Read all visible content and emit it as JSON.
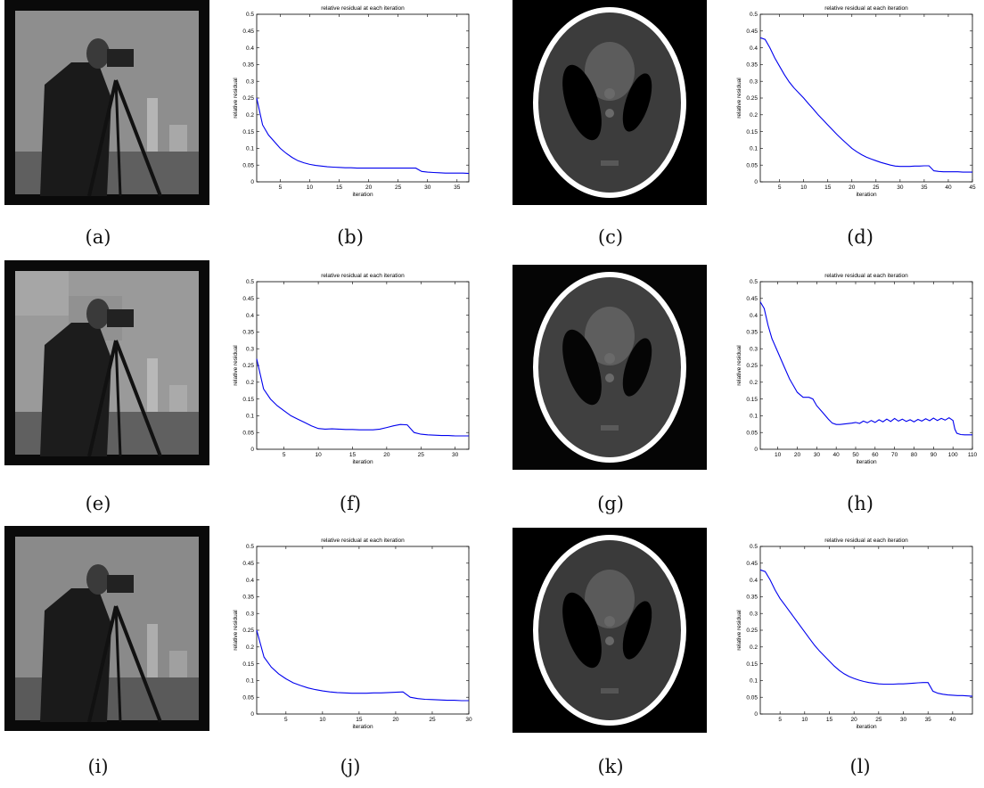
{
  "captions": [
    "(a)",
    "(b)",
    "(c)",
    "(d)",
    "(e)",
    "(f)",
    "(g)",
    "(h)",
    "(i)",
    "(j)",
    "(k)",
    "(l)"
  ],
  "colors": {
    "series": "#0000ee",
    "axis": "#000000"
  },
  "chart_data": [
    {
      "type": "line",
      "title": "relative residual at each iteration",
      "xlabel": "iteration",
      "ylabel": "relative residual",
      "xlim": [
        1,
        37
      ],
      "ylim": [
        0,
        0.5
      ],
      "xticks": [
        5,
        10,
        15,
        20,
        25,
        30,
        35
      ],
      "yticks": [
        0,
        0.05,
        0.1,
        0.15,
        0.2,
        0.25,
        0.3,
        0.35,
        0.4,
        0.45,
        0.5
      ],
      "series": [
        {
          "x": [
            1,
            2,
            3,
            4,
            5,
            6,
            7,
            8,
            9,
            10,
            11,
            12,
            13,
            14,
            15,
            16,
            17,
            18,
            19,
            20,
            21,
            22,
            23,
            24,
            25,
            26,
            27,
            28,
            29,
            30,
            31,
            32,
            33,
            34,
            35,
            36,
            37
          ],
          "values": [
            0.25,
            0.17,
            0.14,
            0.12,
            0.1,
            0.085,
            0.073,
            0.063,
            0.057,
            0.052,
            0.049,
            0.047,
            0.045,
            0.044,
            0.043,
            0.042,
            0.042,
            0.041,
            0.041,
            0.041,
            0.041,
            0.041,
            0.041,
            0.041,
            0.041,
            0.041,
            0.041,
            0.041,
            0.031,
            0.029,
            0.028,
            0.027,
            0.026,
            0.026,
            0.026,
            0.026,
            0.025
          ]
        }
      ]
    },
    {
      "type": "line",
      "title": "relative residual at each iteration",
      "xlabel": "iteration",
      "ylabel": "relative residual",
      "xlim": [
        1,
        45
      ],
      "ylim": [
        0,
        0.5
      ],
      "xticks": [
        5,
        10,
        15,
        20,
        25,
        30,
        35,
        40,
        45
      ],
      "yticks": [
        0,
        0.05,
        0.1,
        0.15,
        0.2,
        0.25,
        0.3,
        0.35,
        0.4,
        0.45,
        0.5
      ],
      "series": [
        {
          "x": [
            1,
            2,
            3,
            4,
            5,
            6,
            7,
            8,
            9,
            10,
            11,
            12,
            13,
            14,
            15,
            16,
            17,
            18,
            19,
            20,
            21,
            22,
            23,
            24,
            25,
            26,
            27,
            28,
            29,
            30,
            31,
            32,
            33,
            34,
            35,
            36,
            37,
            38,
            39,
            40,
            41,
            42,
            43,
            44,
            45
          ],
          "values": [
            0.43,
            0.425,
            0.4,
            0.37,
            0.345,
            0.32,
            0.298,
            0.28,
            0.265,
            0.25,
            0.233,
            0.217,
            0.2,
            0.185,
            0.17,
            0.155,
            0.14,
            0.126,
            0.113,
            0.1,
            0.09,
            0.081,
            0.074,
            0.068,
            0.063,
            0.058,
            0.054,
            0.05,
            0.047,
            0.046,
            0.046,
            0.046,
            0.047,
            0.047,
            0.048,
            0.048,
            0.033,
            0.031,
            0.03,
            0.03,
            0.03,
            0.03,
            0.029,
            0.029,
            0.029
          ]
        }
      ]
    },
    {
      "type": "line",
      "title": "relative residual at each iteration",
      "xlabel": "iteration",
      "ylabel": "relative residual",
      "xlim": [
        1,
        32
      ],
      "ylim": [
        0,
        0.5
      ],
      "xticks": [
        5,
        10,
        15,
        20,
        25,
        30
      ],
      "yticks": [
        0,
        0.05,
        0.1,
        0.15,
        0.2,
        0.25,
        0.3,
        0.35,
        0.4,
        0.45,
        0.5
      ],
      "series": [
        {
          "x": [
            1,
            2,
            3,
            4,
            5,
            6,
            7,
            8,
            9,
            10,
            11,
            12,
            13,
            14,
            15,
            16,
            17,
            18,
            19,
            20,
            21,
            22,
            23,
            24,
            25,
            26,
            27,
            28,
            29,
            30,
            31,
            32
          ],
          "values": [
            0.27,
            0.18,
            0.15,
            0.13,
            0.115,
            0.1,
            0.09,
            0.08,
            0.07,
            0.062,
            0.06,
            0.061,
            0.06,
            0.059,
            0.059,
            0.058,
            0.058,
            0.058,
            0.06,
            0.065,
            0.07,
            0.074,
            0.073,
            0.05,
            0.045,
            0.043,
            0.042,
            0.041,
            0.041,
            0.04,
            0.04,
            0.04
          ]
        }
      ]
    },
    {
      "type": "line",
      "title": "relative residual at each iteration",
      "xlabel": "iteration",
      "ylabel": "relative residual",
      "xlim": [
        1,
        110
      ],
      "ylim": [
        0,
        0.5
      ],
      "xticks": [
        10,
        20,
        30,
        40,
        50,
        60,
        70,
        80,
        90,
        100,
        110
      ],
      "yticks": [
        0,
        0.05,
        0.1,
        0.15,
        0.2,
        0.25,
        0.3,
        0.35,
        0.4,
        0.45,
        0.5
      ],
      "series": [
        {
          "x": [
            1,
            3,
            5,
            7,
            10,
            13,
            16,
            20,
            23,
            26,
            28,
            30,
            33,
            36,
            38,
            40,
            42,
            45,
            48,
            50,
            52,
            54,
            56,
            58,
            60,
            62,
            64,
            66,
            68,
            70,
            72,
            74,
            76,
            78,
            80,
            82,
            84,
            86,
            88,
            90,
            92,
            94,
            96,
            98,
            100,
            101,
            102,
            104,
            106,
            108,
            110
          ],
          "values": [
            0.44,
            0.42,
            0.37,
            0.33,
            0.29,
            0.25,
            0.21,
            0.17,
            0.155,
            0.155,
            0.15,
            0.13,
            0.11,
            0.09,
            0.078,
            0.074,
            0.074,
            0.076,
            0.078,
            0.08,
            0.077,
            0.084,
            0.079,
            0.086,
            0.08,
            0.088,
            0.082,
            0.09,
            0.083,
            0.092,
            0.084,
            0.09,
            0.083,
            0.088,
            0.082,
            0.089,
            0.084,
            0.091,
            0.085,
            0.093,
            0.086,
            0.092,
            0.087,
            0.094,
            0.086,
            0.06,
            0.048,
            0.044,
            0.043,
            0.043,
            0.043
          ]
        }
      ]
    },
    {
      "type": "line",
      "title": "relative residual at each iteration",
      "xlabel": "iteration",
      "ylabel": "relative residual",
      "xlim": [
        1,
        30
      ],
      "ylim": [
        0,
        0.5
      ],
      "xticks": [
        5,
        10,
        15,
        20,
        25,
        30
      ],
      "yticks": [
        0,
        0.05,
        0.1,
        0.15,
        0.2,
        0.25,
        0.3,
        0.35,
        0.4,
        0.45,
        0.5
      ],
      "series": [
        {
          "x": [
            1,
            2,
            3,
            4,
            5,
            6,
            7,
            8,
            9,
            10,
            11,
            12,
            13,
            14,
            15,
            16,
            17,
            18,
            19,
            20,
            21,
            22,
            23,
            24,
            25,
            26,
            27,
            28,
            29,
            30
          ],
          "values": [
            0.25,
            0.17,
            0.14,
            0.12,
            0.105,
            0.093,
            0.085,
            0.078,
            0.073,
            0.069,
            0.066,
            0.064,
            0.063,
            0.062,
            0.062,
            0.062,
            0.063,
            0.063,
            0.064,
            0.065,
            0.066,
            0.05,
            0.046,
            0.044,
            0.043,
            0.042,
            0.041,
            0.041,
            0.04,
            0.04
          ]
        }
      ]
    },
    {
      "type": "line",
      "title": "relative residual at each iteration",
      "xlabel": "iteration",
      "ylabel": "relative residual",
      "xlim": [
        1,
        44
      ],
      "ylim": [
        0,
        0.5
      ],
      "xticks": [
        5,
        10,
        15,
        20,
        25,
        30,
        35,
        40
      ],
      "yticks": [
        0,
        0.05,
        0.1,
        0.15,
        0.2,
        0.25,
        0.3,
        0.35,
        0.4,
        0.45,
        0.5
      ],
      "series": [
        {
          "x": [
            1,
            2,
            3,
            4,
            5,
            6,
            7,
            8,
            9,
            10,
            11,
            12,
            13,
            14,
            15,
            16,
            17,
            18,
            19,
            20,
            21,
            22,
            23,
            24,
            25,
            26,
            27,
            28,
            29,
            30,
            31,
            32,
            33,
            34,
            35,
            36,
            37,
            38,
            39,
            40,
            41,
            42,
            43,
            44
          ],
          "values": [
            0.43,
            0.425,
            0.4,
            0.37,
            0.345,
            0.325,
            0.305,
            0.285,
            0.265,
            0.245,
            0.225,
            0.205,
            0.188,
            0.173,
            0.158,
            0.143,
            0.13,
            0.12,
            0.112,
            0.106,
            0.101,
            0.097,
            0.094,
            0.092,
            0.09,
            0.089,
            0.089,
            0.089,
            0.09,
            0.09,
            0.091,
            0.092,
            0.093,
            0.094,
            0.094,
            0.068,
            0.062,
            0.059,
            0.057,
            0.056,
            0.055,
            0.055,
            0.054,
            0.053
          ]
        }
      ]
    }
  ]
}
